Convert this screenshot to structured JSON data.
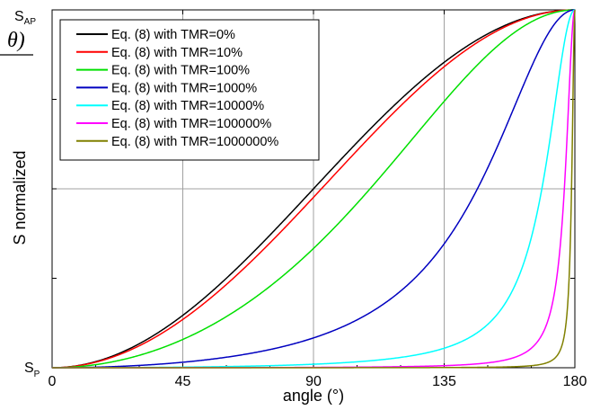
{
  "chart_data": {
    "type": "line",
    "xlabel": "angle (°)",
    "ylabel": "S normalized",
    "xlim": [
      0,
      180
    ],
    "xticks": [
      0,
      45,
      90,
      135,
      180
    ],
    "xtick_labels": [
      "0",
      "45",
      "90",
      "135",
      "180"
    ],
    "ylim": [
      0,
      1
    ],
    "ytick_labels": {
      "bottom": {
        "main": "S",
        "sub": "P"
      },
      "top": {
        "main": "S",
        "sub": "AP"
      }
    },
    "grid": true,
    "legend_position": "top-left",
    "series": [
      {
        "name": "Eq. (8) with TMR=0%",
        "tmr_percent": 0,
        "color": "#000000",
        "points": [
          [
            0,
            0
          ],
          [
            22.5,
            0.038
          ],
          [
            45,
            0.146
          ],
          [
            67.5,
            0.309
          ],
          [
            90,
            0.5
          ],
          [
            112.5,
            0.691
          ],
          [
            135,
            0.854
          ],
          [
            157.5,
            0.962
          ],
          [
            180,
            1
          ]
        ]
      },
      {
        "name": "Eq. (8) with TMR=10%",
        "tmr_percent": 10,
        "color": "#ff0000",
        "points": [
          [
            0,
            0
          ],
          [
            22.5,
            0.035
          ],
          [
            45,
            0.135
          ],
          [
            67.5,
            0.29
          ],
          [
            90,
            0.476
          ],
          [
            112.5,
            0.671
          ],
          [
            135,
            0.842
          ],
          [
            157.5,
            0.958
          ],
          [
            180,
            1
          ]
        ]
      },
      {
        "name": "Eq. (8) with TMR=100%",
        "tmr_percent": 100,
        "color": "#00e000",
        "points": [
          [
            0,
            0
          ],
          [
            22.5,
            0.02
          ],
          [
            45,
            0.079
          ],
          [
            67.5,
            0.183
          ],
          [
            90,
            0.333
          ],
          [
            112.5,
            0.527
          ],
          [
            135,
            0.745
          ],
          [
            157.5,
            0.927
          ],
          [
            180,
            1
          ]
        ]
      },
      {
        "name": "Eq. (8) with TMR=1000%",
        "tmr_percent": 1000,
        "color": "#0000c0",
        "points": [
          [
            0,
            0
          ],
          [
            22.5,
            0.004
          ],
          [
            45,
            0.015
          ],
          [
            67.5,
            0.039
          ],
          [
            90,
            0.083
          ],
          [
            112.5,
            0.169
          ],
          [
            135,
            0.347
          ],
          [
            157.5,
            0.701
          ],
          [
            180,
            1
          ]
        ]
      },
      {
        "name": "Eq. (8) with TMR=10000%",
        "tmr_percent": 10000,
        "color": "#00ffff",
        "points": [
          [
            0,
            0
          ],
          [
            22.5,
            0.0004
          ],
          [
            45,
            0.0017
          ],
          [
            67.5,
            0.0044
          ],
          [
            90,
            0.0099
          ],
          [
            112.5,
            0.022
          ],
          [
            135,
            0.055
          ],
          [
            157.5,
            0.192
          ],
          [
            180,
            1
          ]
        ]
      },
      {
        "name": "Eq. (8) with TMR=100000%",
        "tmr_percent": 100000,
        "color": "#ff00ff",
        "points": [
          [
            0,
            0
          ],
          [
            22.5,
            4e-05
          ],
          [
            45,
            0.00017
          ],
          [
            67.5,
            0.00045
          ],
          [
            90,
            0.001
          ],
          [
            112.5,
            0.0023
          ],
          [
            135,
            0.0058
          ],
          [
            157.5,
            0.023
          ],
          [
            180,
            1
          ]
        ]
      },
      {
        "name": "Eq. (8) with TMR=1000000%",
        "tmr_percent": 1000000,
        "color": "#808000",
        "points": [
          [
            0,
            0
          ],
          [
            22.5,
            4e-06
          ],
          [
            45,
            1.7e-05
          ],
          [
            67.5,
            4.5e-05
          ],
          [
            90,
            0.0001
          ],
          [
            112.5,
            0.00023
          ],
          [
            135,
            0.00059
          ],
          [
            157.5,
            0.0024
          ],
          [
            180,
            1
          ]
        ]
      }
    ]
  },
  "page_fragment": {
    "left_text_top": "θ)",
    "left_text_dot": "."
  }
}
